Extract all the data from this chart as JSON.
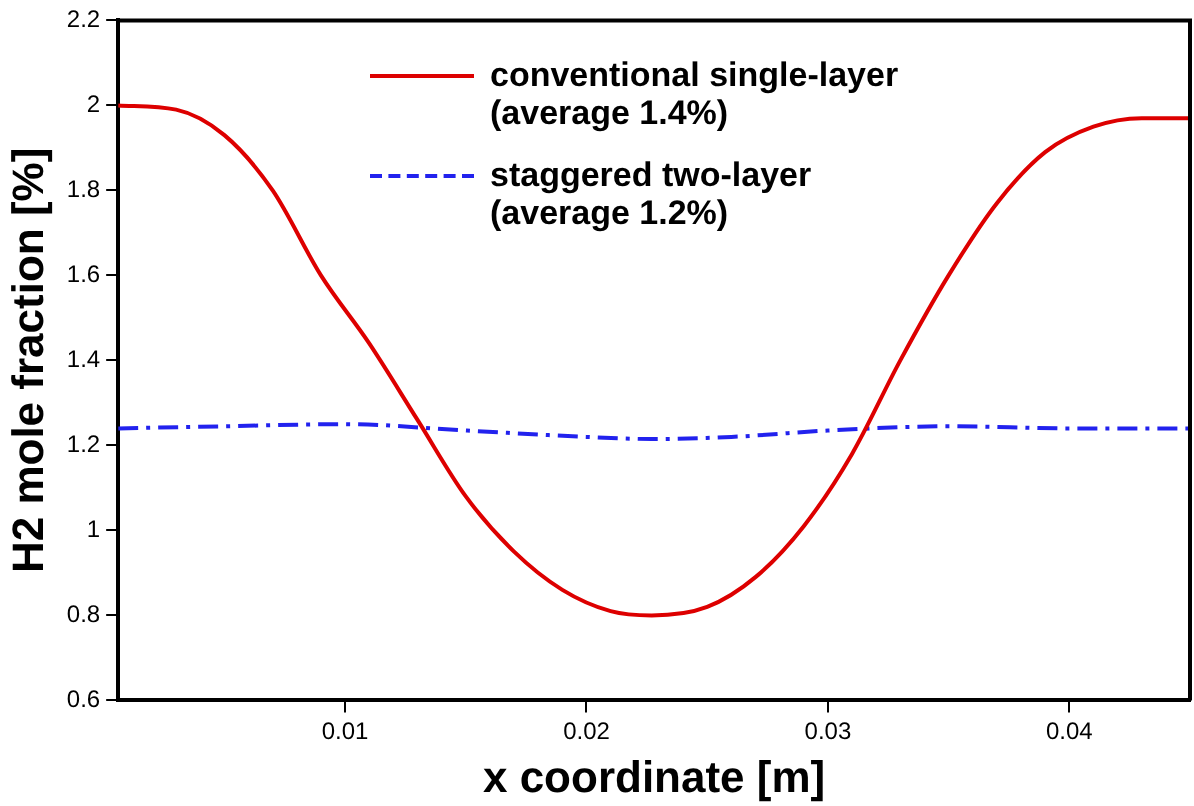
{
  "chart_data": {
    "type": "line",
    "xlabel": "x coordinate [m]",
    "ylabel": "H2 mole fraction [%]",
    "xlim": [
      0.0006,
      0.045
    ],
    "xticks": [
      0.01,
      0.02,
      0.03,
      0.04
    ],
    "ylim": [
      0.6,
      2.2
    ],
    "yticks": [
      0.6,
      0.8,
      1,
      1.2,
      1.4,
      1.6,
      1.8,
      2,
      2.2
    ],
    "grid": false,
    "legend": "top",
    "marker": "none",
    "series": [
      {
        "name": "conventional single-layer (average 1.4%)",
        "color": "#dd0000",
        "line_style": "solid",
        "x": [
          0.0006,
          0.003,
          0.005,
          0.007,
          0.009,
          0.011,
          0.013,
          0.015,
          0.017,
          0.019,
          0.021,
          0.0227,
          0.025,
          0.027,
          0.029,
          0.031,
          0.033,
          0.035,
          0.037,
          0.039,
          0.041,
          0.043,
          0.045
        ],
        "values": [
          2.0,
          1.99,
          1.93,
          1.8,
          1.6,
          1.44,
          1.26,
          1.08,
          0.95,
          0.86,
          0.81,
          0.8,
          0.82,
          0.89,
          1.01,
          1.18,
          1.4,
          1.6,
          1.77,
          1.89,
          1.95,
          1.97,
          1.97
        ]
      },
      {
        "name": "staggered two-layer (average 1.2%)",
        "color": "#2222ee",
        "line_style": "dashdot",
        "x": [
          0.0006,
          0.005,
          0.01,
          0.015,
          0.02,
          0.0227,
          0.026,
          0.03,
          0.035,
          0.04,
          0.045
        ],
        "values": [
          1.24,
          1.245,
          1.25,
          1.235,
          1.22,
          1.215,
          1.22,
          1.235,
          1.245,
          1.24,
          1.24
        ]
      }
    ]
  }
}
